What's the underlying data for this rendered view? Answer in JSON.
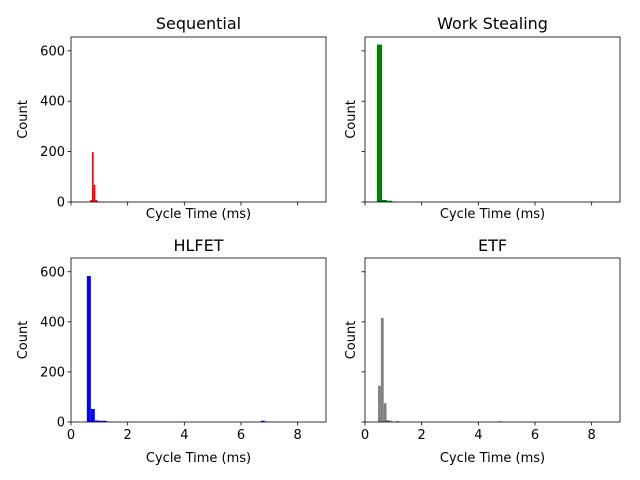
{
  "chart_data": [
    {
      "type": "bar",
      "title": "Sequential",
      "xlabel": "Cycle Time (ms)",
      "ylabel": "Count",
      "color": "#ff0000",
      "xlim": [
        0,
        9.0
      ],
      "ylim": [
        0,
        655
      ],
      "bin_width": 0.06,
      "bins": [
        {
          "x": 0.68,
          "y": 8
        },
        {
          "x": 0.74,
          "y": 198
        },
        {
          "x": 0.8,
          "y": 68
        },
        {
          "x": 0.86,
          "y": 8
        },
        {
          "x": 0.92,
          "y": 3
        },
        {
          "x": 1.1,
          "y": 2
        }
      ]
    },
    {
      "type": "bar",
      "title": "Work Stealing",
      "xlabel": "Cycle Time (ms)",
      "ylabel": "Count",
      "color": "#008000",
      "xlim": [
        0,
        9.0
      ],
      "ylim": [
        0,
        655
      ],
      "bin_width": 0.18,
      "bins": [
        {
          "x": 0.42,
          "y": 625
        },
        {
          "x": 0.6,
          "y": 8
        },
        {
          "x": 0.78,
          "y": 5
        },
        {
          "x": 0.96,
          "y": 1
        }
      ]
    },
    {
      "type": "bar",
      "title": "HLFET",
      "xlabel": "Cycle Time (ms)",
      "ylabel": "Count",
      "color": "#0000ff",
      "xlim": [
        0,
        9.0
      ],
      "ylim": [
        0,
        655
      ],
      "bin_width": 0.14,
      "bins": [
        {
          "x": 0.56,
          "y": 583
        },
        {
          "x": 0.7,
          "y": 52
        },
        {
          "x": 0.84,
          "y": 6
        },
        {
          "x": 0.98,
          "y": 5
        },
        {
          "x": 1.12,
          "y": 5
        },
        {
          "x": 1.26,
          "y": 2
        },
        {
          "x": 6.7,
          "y": 5
        },
        {
          "x": 6.84,
          "y": 2
        }
      ]
    },
    {
      "type": "bar",
      "title": "ETF",
      "xlabel": "Cycle Time (ms)",
      "ylabel": "Count",
      "color": "#808080",
      "xlim": [
        0,
        9.0
      ],
      "ylim": [
        0,
        655
      ],
      "bin_width": 0.1,
      "bins": [
        {
          "x": 0.46,
          "y": 145
        },
        {
          "x": 0.56,
          "y": 415
        },
        {
          "x": 0.66,
          "y": 75
        },
        {
          "x": 0.76,
          "y": 8
        },
        {
          "x": 0.86,
          "y": 5
        },
        {
          "x": 1.1,
          "y": 4
        },
        {
          "x": 4.7,
          "y": 3
        }
      ]
    }
  ],
  "axes": {
    "x_ticks": [
      0,
      2,
      4,
      6,
      8
    ],
    "y_ticks": [
      0,
      200,
      400,
      600
    ],
    "x_tick_labels_shown_on": "bottom-row",
    "y_tick_labels_shown_on": "left-column"
  }
}
